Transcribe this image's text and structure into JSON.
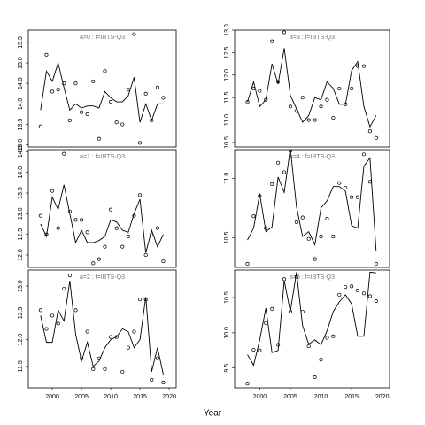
{
  "x_label": "Year",
  "chart_data": [
    {
      "type": "line",
      "title": "a=0  :  f=IBTS-Q3",
      "x": [
        1998,
        1999,
        2000,
        2001,
        2002,
        2003,
        2004,
        2005,
        2006,
        2007,
        2008,
        2009,
        2010,
        2011,
        2012,
        2013,
        2014,
        2015,
        2016,
        2017,
        2018,
        2019
      ],
      "xlim": [
        1995.9,
        2021.2
      ],
      "ylim": [
        12.95,
        15.8
      ],
      "yticks": [
        {
          "value": 13.0,
          "label": "13.0"
        },
        13.5,
        {
          "value": 14.0,
          "label": "14.0"
        },
        14.5,
        {
          "value": 15.0,
          "label": "15.0"
        },
        15.5
      ],
      "series": [
        {
          "style": "points",
          "color": "#000000",
          "values": [
            13.45,
            15.2,
            14.3,
            14.35,
            14.5,
            13.6,
            14.5,
            13.8,
            13.75,
            14.55,
            13.15,
            14.8,
            14.05,
            13.55,
            13.5,
            14.35,
            15.7,
            13.05,
            14.25,
            13.6,
            14.4,
            14.15
          ]
        },
        {
          "style": "line",
          "color": "#000000",
          "values": [
            13.85,
            14.8,
            14.55,
            15.0,
            14.4,
            13.85,
            14.0,
            13.9,
            13.95,
            13.95,
            13.9,
            14.3,
            14.15,
            14.05,
            14.05,
            14.2,
            14.65,
            13.55,
            14.0,
            13.6,
            14.0,
            14.0
          ]
        }
      ]
    },
    {
      "type": "line",
      "title": "a=1  :  f=IBTS-Q3",
      "x": [
        1998,
        1999,
        2000,
        2001,
        2002,
        2003,
        2004,
        2005,
        2006,
        2007,
        2008,
        2009,
        2010,
        2011,
        2012,
        2013,
        2014,
        2015,
        2016,
        2017,
        2018,
        2019
      ],
      "xlim": [
        1995.9,
        2021.2
      ],
      "ylim": [
        11.7,
        14.55
      ],
      "yticks": [
        {
          "value": 12.0,
          "label": "12.0"
        },
        12.5,
        {
          "value": 13.0,
          "label": "13.0"
        },
        13.5,
        {
          "value": 14.0,
          "label": "14.0"
        },
        14.5
      ],
      "series": [
        {
          "style": "points",
          "color": "#000000",
          "values": [
            12.95,
            12.5,
            13.55,
            12.65,
            14.45,
            13.05,
            12.85,
            12.85,
            12.55,
            11.8,
            11.9,
            12.2,
            13.1,
            12.65,
            12.2,
            12.45,
            12.95,
            13.45,
            12.0,
            12.5,
            12.65,
            11.85
          ]
        },
        {
          "style": "line",
          "color": "#000000",
          "values": [
            12.75,
            12.45,
            13.4,
            13.1,
            13.7,
            13.0,
            12.3,
            12.6,
            12.3,
            12.3,
            12.35,
            12.45,
            12.85,
            12.8,
            12.6,
            12.55,
            13.0,
            13.35,
            12.05,
            12.6,
            12.2,
            12.5
          ]
        }
      ]
    },
    {
      "type": "line",
      "title": "a=2  :  f=IBTS-Q3",
      "x": [
        1998,
        1999,
        2000,
        2001,
        2002,
        2003,
        2004,
        2005,
        2006,
        2007,
        2008,
        2009,
        2010,
        2011,
        2012,
        2013,
        2014,
        2015,
        2016,
        2017,
        2018,
        2019
      ],
      "xlim": [
        1995.9,
        2021.2
      ],
      "ylim": [
        11.1,
        13.3
      ],
      "xticks": [
        2000,
        2005,
        2010,
        2015,
        2020
      ],
      "yticks": [
        11.5,
        {
          "value": 12.0,
          "label": "12.0"
        },
        12.5,
        {
          "value": 13.0,
          "label": "13.0"
        }
      ],
      "series": [
        {
          "style": "points",
          "color": "#000000",
          "values": [
            12.55,
            12.2,
            12.45,
            12.3,
            12.95,
            13.2,
            12.55,
            11.65,
            12.15,
            11.45,
            11.65,
            11.45,
            12.05,
            12.05,
            11.4,
            11.85,
            12.15,
            12.75,
            12.75,
            11.25,
            11.65,
            11.2
          ]
        },
        {
          "style": "line",
          "color": "#000000",
          "values": [
            12.45,
            11.95,
            11.95,
            12.55,
            12.35,
            13.1,
            12.1,
            11.6,
            11.95,
            11.5,
            11.6,
            11.85,
            12.0,
            12.05,
            12.2,
            12.15,
            11.85,
            12.0,
            12.8,
            11.4,
            11.85,
            11.35
          ]
        }
      ]
    },
    {
      "type": "line",
      "title": "a=3  :  f=IBTS-Q3",
      "x": [
        1998,
        1999,
        2000,
        2001,
        2002,
        2003,
        2004,
        2005,
        2006,
        2007,
        2008,
        2009,
        2010,
        2011,
        2012,
        2013,
        2014,
        2015,
        2016,
        2017,
        2018,
        2019
      ],
      "xlim": [
        1995.9,
        2021.2
      ],
      "ylim": [
        10.4,
        13.0
      ],
      "yticks": [
        10.5,
        {
          "value": 11.0,
          "label": "11.0"
        },
        11.5,
        {
          "value": 12.0,
          "label": "12.0"
        },
        12.5,
        {
          "value": 13.0,
          "label": "13.0"
        }
      ],
      "series": [
        {
          "style": "points",
          "color": "#000000",
          "values": [
            11.4,
            11.7,
            11.65,
            11.45,
            12.75,
            11.85,
            12.95,
            11.3,
            11.2,
            11.5,
            11.0,
            11.0,
            11.3,
            11.45,
            11.05,
            11.7,
            11.35,
            11.7,
            12.2,
            12.2,
            10.75,
            10.6
          ]
        },
        {
          "style": "line",
          "color": "#000000",
          "values": [
            11.4,
            11.85,
            11.3,
            11.45,
            12.25,
            11.8,
            12.6,
            11.55,
            11.25,
            10.95,
            11.1,
            11.5,
            11.45,
            11.85,
            11.7,
            11.35,
            11.35,
            12.1,
            12.3,
            11.3,
            10.85,
            11.1
          ]
        }
      ]
    },
    {
      "type": "line",
      "title": "a=4  :  f=IBTS-Q3",
      "x": [
        1998,
        1999,
        2000,
        2001,
        2002,
        2003,
        2004,
        2005,
        2006,
        2007,
        2008,
        2009,
        2010,
        2011,
        2012,
        2013,
        2014,
        2015,
        2016,
        2017,
        2018,
        2019
      ],
      "xlim": [
        1995.9,
        2021.2
      ],
      "ylim": [
        10.25,
        11.24
      ],
      "yticks": [
        10.5,
        {
          "value": 11.0,
          "label": "11.0"
        }
      ],
      "series": [
        {
          "style": "points",
          "color": "#000000",
          "values": [
            10.28,
            10.68,
            10.85,
            10.58,
            10.95,
            11.13,
            11.05,
            11.23,
            10.63,
            10.67,
            10.49,
            10.32,
            10.51,
            10.66,
            10.51,
            10.96,
            10.92,
            10.84,
            10.84,
            11.2,
            10.97,
            10.28
          ]
        },
        {
          "style": "line",
          "color": "#000000",
          "values": [
            10.48,
            10.58,
            10.87,
            10.55,
            10.59,
            11.01,
            10.88,
            11.25,
            10.76,
            10.51,
            10.55,
            10.44,
            10.75,
            10.81,
            10.93,
            10.93,
            10.89,
            10.6,
            10.58,
            11.1,
            11.17,
            10.39
          ]
        }
      ]
    },
    {
      "type": "line",
      "title": "a=5  :  f=IBTS-Q3",
      "x": [
        1998,
        1999,
        2000,
        2001,
        2002,
        2003,
        2004,
        2005,
        2006,
        2007,
        2008,
        2009,
        2010,
        2011,
        2012,
        2013,
        2014,
        2015,
        2016,
        2017,
        2018,
        2019
      ],
      "xlim": [
        1995.9,
        2021.2
      ],
      "ylim": [
        9.22,
        10.89
      ],
      "xticks": [
        2000,
        2005,
        2010,
        2015,
        2020
      ],
      "yticks": [
        9.5,
        {
          "value": 10.0,
          "label": "10.0"
        },
        10.5
      ],
      "series": [
        {
          "style": "points",
          "color": "#000000",
          "values": [
            9.28,
            9.76,
            9.75,
            10.14,
            10.34,
            9.83,
            10.76,
            10.3,
            10.79,
            10.3,
            9.81,
            9.37,
            9.62,
            9.93,
            9.95,
            10.54,
            10.65,
            10.66,
            10.6,
            10.56,
            10.52,
            10.45
          ]
        },
        {
          "style": "line",
          "color": "#000000",
          "values": [
            9.69,
            9.54,
            9.9,
            10.35,
            9.72,
            9.75,
            10.74,
            10.3,
            10.86,
            10.1,
            9.84,
            9.9,
            9.83,
            10.03,
            10.3,
            10.44,
            10.54,
            10.41,
            9.95,
            9.95,
            10.86,
            10.85
          ]
        }
      ]
    }
  ]
}
